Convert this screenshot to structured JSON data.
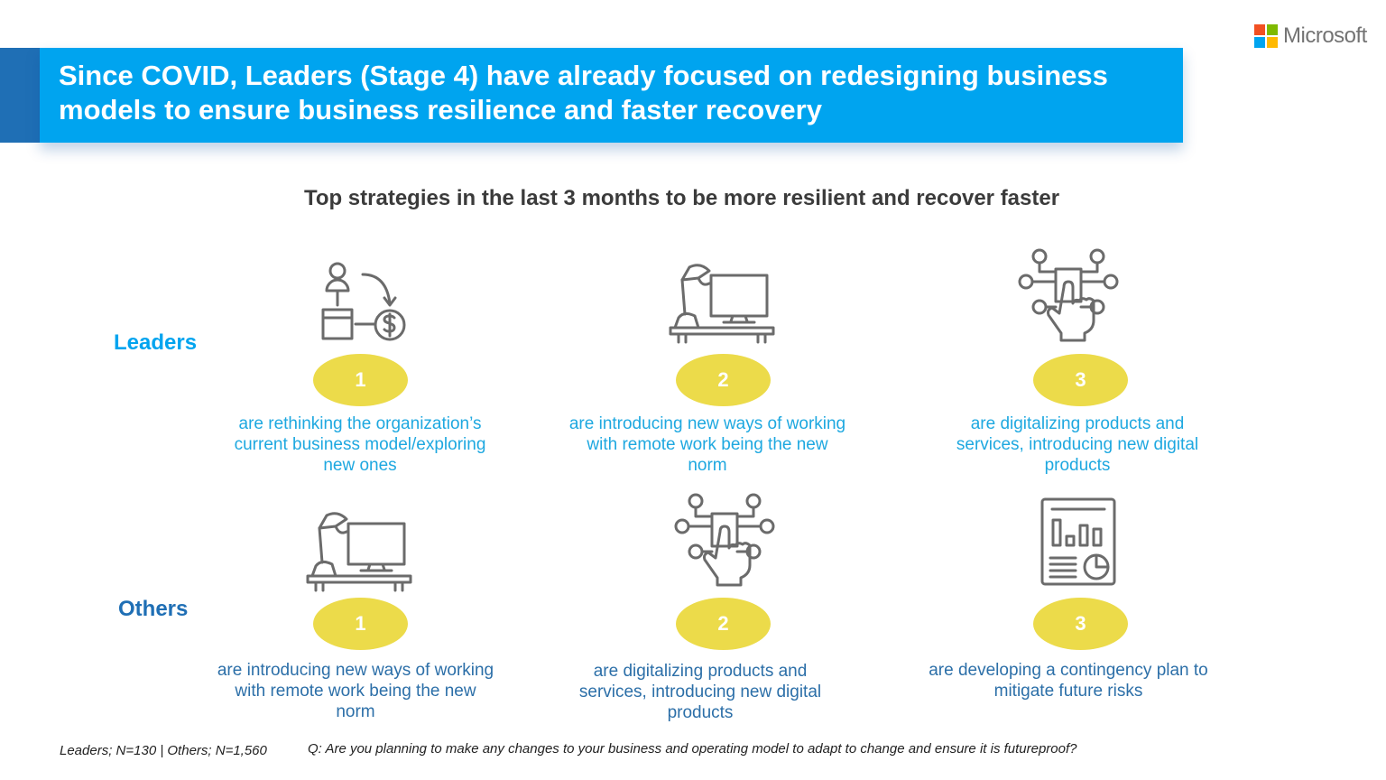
{
  "brand": {
    "name": "Microsoft",
    "colors": [
      "#f25022",
      "#7fba00",
      "#00a4ef",
      "#ffb900"
    ]
  },
  "header": {
    "title": "Since COVID, Leaders (Stage 4) have already focused on redesigning business models to ensure business resilience and faster recovery",
    "banner_color": "#00a4ef",
    "accent_color": "#1f6fb5"
  },
  "subtitle": "Top strategies in the last 3 months to be more resilient and recover faster",
  "leaders": {
    "label": "Leaders",
    "color": "#00a4ef",
    "items": [
      {
        "rank": "1",
        "icon": "business-model-icon",
        "text": "are rethinking the organization’s current business model/exploring new ones"
      },
      {
        "rank": "2",
        "icon": "remote-desk-icon",
        "text": "are introducing new ways of working with remote work being the new norm"
      },
      {
        "rank": "3",
        "icon": "digital-touch-icon",
        "text": "are digitalizing products and services, introducing new digital products"
      }
    ]
  },
  "others": {
    "label": "Others",
    "color": "#1f6fb5",
    "items": [
      {
        "rank": "1",
        "icon": "remote-desk-icon",
        "text": "are introducing new ways of working with remote work being the new norm"
      },
      {
        "rank": "2",
        "icon": "digital-touch-icon",
        "text": "are digitalizing products and services, introducing new digital products"
      },
      {
        "rank": "3",
        "icon": "report-chart-icon",
        "text": "are developing a contingency plan to mitigate future risks"
      }
    ]
  },
  "badge_color": "#ecdb4a",
  "footer": {
    "sample": "Leaders; N=130 | Others; N=1,560",
    "question": "Q: Are you planning to make any changes to your business and operating model to adapt to change and ensure it is futureproof?"
  }
}
